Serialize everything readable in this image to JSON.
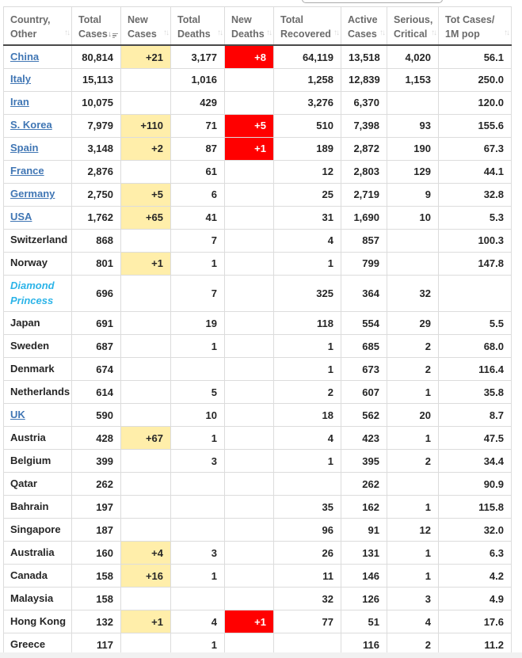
{
  "search": {
    "value": "",
    "placeholder": ""
  },
  "colors": {
    "new_cases_highlight": "#FFEEAA",
    "new_deaths_highlight": "#FF0000",
    "new_deaths_text": "#FFFFFF",
    "country_link": "#4076B4",
    "special_country_link": "#2CB4E8",
    "header_text": "#6B6B6B",
    "cell_text": "#262626"
  },
  "table": {
    "columns": [
      {
        "id": "country",
        "label_lines": [
          "Country,",
          "Other"
        ],
        "sort": "none"
      },
      {
        "id": "total_cases",
        "label_lines": [
          "Total",
          "Cases"
        ],
        "sort": "desc"
      },
      {
        "id": "new_cases",
        "label_lines": [
          "New",
          "Cases"
        ],
        "sort": "none"
      },
      {
        "id": "total_deaths",
        "label_lines": [
          "Total",
          "Deaths"
        ],
        "sort": "none"
      },
      {
        "id": "new_deaths",
        "label_lines": [
          "New",
          "Deaths"
        ],
        "sort": "none"
      },
      {
        "id": "total_recovered",
        "label_lines": [
          "Total",
          "Recovered"
        ],
        "sort": "none"
      },
      {
        "id": "active_cases",
        "label_lines": [
          "Active",
          "Cases"
        ],
        "sort": "none"
      },
      {
        "id": "serious_critical",
        "label_lines": [
          "Serious,",
          "Critical"
        ],
        "sort": "none"
      },
      {
        "id": "cases_per_1m",
        "label_lines": [
          "Tot Cases/",
          "1M pop"
        ],
        "sort": "none"
      }
    ],
    "rows": [
      {
        "country": "China",
        "style": "link",
        "total_cases": "80,814",
        "new_cases": "+21",
        "total_deaths": "3,177",
        "new_deaths": "+8",
        "total_recovered": "64,119",
        "active_cases": "13,518",
        "serious_critical": "4,020",
        "cases_per_1m": "56.1"
      },
      {
        "country": "Italy",
        "style": "link",
        "total_cases": "15,113",
        "new_cases": "",
        "total_deaths": "1,016",
        "new_deaths": "",
        "total_recovered": "1,258",
        "active_cases": "12,839",
        "serious_critical": "1,153",
        "cases_per_1m": "250.0"
      },
      {
        "country": "Iran",
        "style": "link",
        "total_cases": "10,075",
        "new_cases": "",
        "total_deaths": "429",
        "new_deaths": "",
        "total_recovered": "3,276",
        "active_cases": "6,370",
        "serious_critical": "",
        "cases_per_1m": "120.0"
      },
      {
        "country": "S. Korea",
        "style": "link",
        "total_cases": "7,979",
        "new_cases": "+110",
        "total_deaths": "71",
        "new_deaths": "+5",
        "total_recovered": "510",
        "active_cases": "7,398",
        "serious_critical": "93",
        "cases_per_1m": "155.6"
      },
      {
        "country": "Spain",
        "style": "link",
        "total_cases": "3,148",
        "new_cases": "+2",
        "total_deaths": "87",
        "new_deaths": "+1",
        "total_recovered": "189",
        "active_cases": "2,872",
        "serious_critical": "190",
        "cases_per_1m": "67.3"
      },
      {
        "country": "France",
        "style": "link",
        "total_cases": "2,876",
        "new_cases": "",
        "total_deaths": "61",
        "new_deaths": "",
        "total_recovered": "12",
        "active_cases": "2,803",
        "serious_critical": "129",
        "cases_per_1m": "44.1"
      },
      {
        "country": "Germany",
        "style": "link",
        "total_cases": "2,750",
        "new_cases": "+5",
        "total_deaths": "6",
        "new_deaths": "",
        "total_recovered": "25",
        "active_cases": "2,719",
        "serious_critical": "9",
        "cases_per_1m": "32.8"
      },
      {
        "country": "USA",
        "style": "link",
        "total_cases": "1,762",
        "new_cases": "+65",
        "total_deaths": "41",
        "new_deaths": "",
        "total_recovered": "31",
        "active_cases": "1,690",
        "serious_critical": "10",
        "cases_per_1m": "5.3"
      },
      {
        "country": "Switzerland",
        "style": "plain",
        "total_cases": "868",
        "new_cases": "",
        "total_deaths": "7",
        "new_deaths": "",
        "total_recovered": "4",
        "active_cases": "857",
        "serious_critical": "",
        "cases_per_1m": "100.3"
      },
      {
        "country": "Norway",
        "style": "plain",
        "total_cases": "801",
        "new_cases": "+1",
        "total_deaths": "1",
        "new_deaths": "",
        "total_recovered": "1",
        "active_cases": "799",
        "serious_critical": "",
        "cases_per_1m": "147.8"
      },
      {
        "country": "Diamond Princess",
        "style": "special",
        "total_cases": "696",
        "new_cases": "",
        "total_deaths": "7",
        "new_deaths": "",
        "total_recovered": "325",
        "active_cases": "364",
        "serious_critical": "32",
        "cases_per_1m": ""
      },
      {
        "country": "Japan",
        "style": "plain",
        "total_cases": "691",
        "new_cases": "",
        "total_deaths": "19",
        "new_deaths": "",
        "total_recovered": "118",
        "active_cases": "554",
        "serious_critical": "29",
        "cases_per_1m": "5.5"
      },
      {
        "country": "Sweden",
        "style": "plain",
        "total_cases": "687",
        "new_cases": "",
        "total_deaths": "1",
        "new_deaths": "",
        "total_recovered": "1",
        "active_cases": "685",
        "serious_critical": "2",
        "cases_per_1m": "68.0"
      },
      {
        "country": "Denmark",
        "style": "plain",
        "total_cases": "674",
        "new_cases": "",
        "total_deaths": "",
        "new_deaths": "",
        "total_recovered": "1",
        "active_cases": "673",
        "serious_critical": "2",
        "cases_per_1m": "116.4"
      },
      {
        "country": "Netherlands",
        "style": "plain",
        "total_cases": "614",
        "new_cases": "",
        "total_deaths": "5",
        "new_deaths": "",
        "total_recovered": "2",
        "active_cases": "607",
        "serious_critical": "1",
        "cases_per_1m": "35.8"
      },
      {
        "country": "UK",
        "style": "link",
        "total_cases": "590",
        "new_cases": "",
        "total_deaths": "10",
        "new_deaths": "",
        "total_recovered": "18",
        "active_cases": "562",
        "serious_critical": "20",
        "cases_per_1m": "8.7"
      },
      {
        "country": "Austria",
        "style": "plain",
        "total_cases": "428",
        "new_cases": "+67",
        "total_deaths": "1",
        "new_deaths": "",
        "total_recovered": "4",
        "active_cases": "423",
        "serious_critical": "1",
        "cases_per_1m": "47.5"
      },
      {
        "country": "Belgium",
        "style": "plain",
        "total_cases": "399",
        "new_cases": "",
        "total_deaths": "3",
        "new_deaths": "",
        "total_recovered": "1",
        "active_cases": "395",
        "serious_critical": "2",
        "cases_per_1m": "34.4"
      },
      {
        "country": "Qatar",
        "style": "plain",
        "total_cases": "262",
        "new_cases": "",
        "total_deaths": "",
        "new_deaths": "",
        "total_recovered": "",
        "active_cases": "262",
        "serious_critical": "",
        "cases_per_1m": "90.9"
      },
      {
        "country": "Bahrain",
        "style": "plain",
        "total_cases": "197",
        "new_cases": "",
        "total_deaths": "",
        "new_deaths": "",
        "total_recovered": "35",
        "active_cases": "162",
        "serious_critical": "1",
        "cases_per_1m": "115.8"
      },
      {
        "country": "Singapore",
        "style": "plain",
        "total_cases": "187",
        "new_cases": "",
        "total_deaths": "",
        "new_deaths": "",
        "total_recovered": "96",
        "active_cases": "91",
        "serious_critical": "12",
        "cases_per_1m": "32.0"
      },
      {
        "country": "Australia",
        "style": "plain",
        "total_cases": "160",
        "new_cases": "+4",
        "total_deaths": "3",
        "new_deaths": "",
        "total_recovered": "26",
        "active_cases": "131",
        "serious_critical": "1",
        "cases_per_1m": "6.3"
      },
      {
        "country": "Canada",
        "style": "plain",
        "total_cases": "158",
        "new_cases": "+16",
        "total_deaths": "1",
        "new_deaths": "",
        "total_recovered": "11",
        "active_cases": "146",
        "serious_critical": "1",
        "cases_per_1m": "4.2"
      },
      {
        "country": "Malaysia",
        "style": "plain",
        "total_cases": "158",
        "new_cases": "",
        "total_deaths": "",
        "new_deaths": "",
        "total_recovered": "32",
        "active_cases": "126",
        "serious_critical": "3",
        "cases_per_1m": "4.9"
      },
      {
        "country": "Hong Kong",
        "style": "plain",
        "total_cases": "132",
        "new_cases": "+1",
        "total_deaths": "4",
        "new_deaths": "+1",
        "total_recovered": "77",
        "active_cases": "51",
        "serious_critical": "4",
        "cases_per_1m": "17.6"
      },
      {
        "country": "Greece",
        "style": "plain",
        "total_cases": "117",
        "new_cases": "",
        "total_deaths": "1",
        "new_deaths": "",
        "total_recovered": "",
        "active_cases": "116",
        "serious_critical": "2",
        "cases_per_1m": "11.2"
      }
    ]
  }
}
